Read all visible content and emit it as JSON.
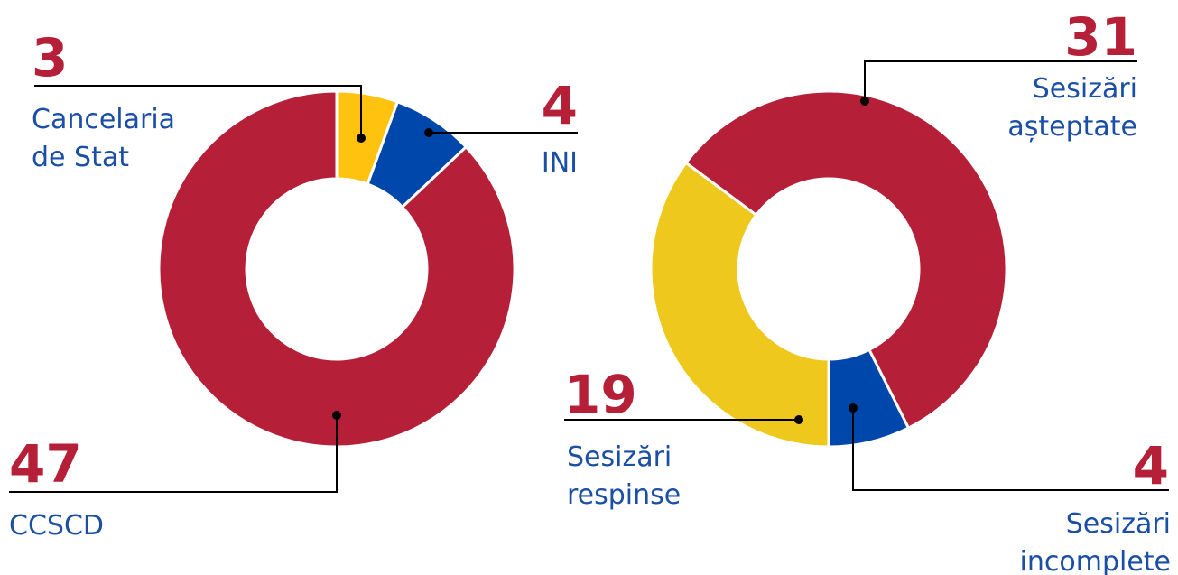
{
  "chart_data": [
    {
      "type": "donut",
      "categories": [
        "Cancelaria de Stat",
        "INI",
        "CCSCD"
      ],
      "values": [
        3,
        4,
        47
      ],
      "colors": [
        "#ffc20e",
        "#0047ab",
        "#b51f38"
      ]
    },
    {
      "type": "donut",
      "categories": [
        "Sesizări așteptate",
        "Sesizări incomplete",
        "Sesizări respinse"
      ],
      "values": [
        31,
        4,
        19
      ],
      "colors": [
        "#b51f38",
        "#0047ab",
        "#efc81d"
      ]
    }
  ]
}
